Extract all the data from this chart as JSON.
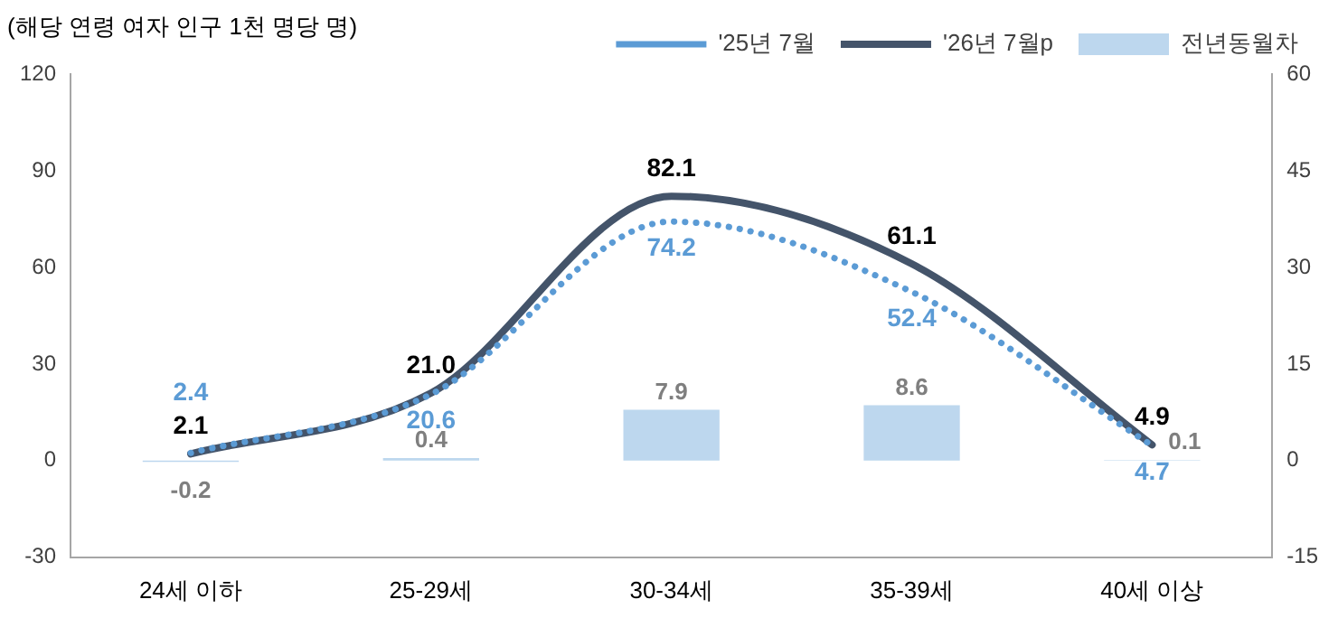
{
  "chart_data": {
    "type": "line",
    "ylabel": "(해당 연령 여자 인구 1천 명당 명)",
    "categories": [
      "24세 이하",
      "25-29세",
      "30-34세",
      "35-39세",
      "40세 이상"
    ],
    "series": [
      {
        "name": "전년동월차",
        "type": "bar",
        "axis": "y2",
        "color": "#bdd7ee",
        "values": [
          -0.2,
          0.4,
          7.9,
          8.6,
          0.1
        ],
        "value_labels": [
          "-0.2",
          "0.4",
          "7.9",
          "8.6",
          "0.1"
        ]
      },
      {
        "name": "'25년 7월",
        "color": "#5b9bd5",
        "line_style": "dotted",
        "values": [
          2.4,
          20.6,
          74.2,
          52.4,
          4.7
        ],
        "value_labels": [
          "2.4",
          "20.6",
          "74.2",
          "52.4",
          "4.7"
        ]
      },
      {
        "name": "'26년 7월p",
        "color": "#44546a",
        "line_style": "solid",
        "values": [
          2.1,
          21.0,
          82.1,
          61.1,
          4.9
        ],
        "value_labels": [
          "2.1",
          "21.0",
          "82.1",
          "61.1",
          "4.9"
        ]
      }
    ],
    "ylim": [
      -30,
      120
    ],
    "yticks": [
      -30,
      0,
      30,
      60,
      90,
      120
    ],
    "y2lim": [
      -15,
      60
    ],
    "y2ticks": [
      -15,
      0,
      15,
      30,
      45,
      60
    ],
    "grid": false,
    "legend": "top right",
    "marker": "none"
  }
}
